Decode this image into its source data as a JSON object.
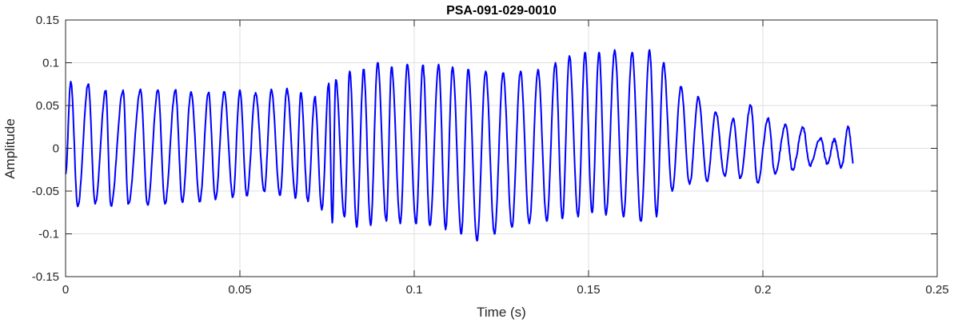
{
  "chart_data": {
    "type": "line",
    "title": "PSA-091-029-0010",
    "xlabel": "Time (s)",
    "ylabel": "Amplitude",
    "xlim": [
      0,
      0.25
    ],
    "ylim": [
      -0.15,
      0.15
    ],
    "x_ticks": [
      0,
      0.05,
      0.1,
      0.15,
      0.2,
      0.25
    ],
    "x_tick_labels": [
      "0",
      "0.05",
      "0.1",
      "0.15",
      "0.2",
      "0.25"
    ],
    "y_ticks": [
      -0.15,
      -0.1,
      -0.05,
      0,
      0.05,
      0.1,
      0.15
    ],
    "y_tick_labels": [
      "-0.15",
      "-0.1",
      "-0.05",
      "0",
      "0.05",
      "0.1",
      "0.15"
    ],
    "grid": true,
    "line_color": "#0000ff",
    "series": [
      {
        "peaks": [
          {
            "t": 0.0015,
            "v": 0.078
          },
          {
            "t": 0.0065,
            "v": 0.075
          },
          {
            "t": 0.0115,
            "v": 0.067
          },
          {
            "t": 0.0165,
            "v": 0.068
          },
          {
            "t": 0.0215,
            "v": 0.069
          },
          {
            "t": 0.0265,
            "v": 0.068
          },
          {
            "t": 0.0315,
            "v": 0.068
          },
          {
            "t": 0.036,
            "v": 0.066
          },
          {
            "t": 0.041,
            "v": 0.065
          },
          {
            "t": 0.0455,
            "v": 0.066
          },
          {
            "t": 0.05,
            "v": 0.068
          },
          {
            "t": 0.0545,
            "v": 0.065
          },
          {
            "t": 0.059,
            "v": 0.069
          },
          {
            "t": 0.0635,
            "v": 0.07
          },
          {
            "t": 0.0675,
            "v": 0.065
          },
          {
            "t": 0.0715,
            "v": 0.06
          },
          {
            "t": 0.0755,
            "v": 0.076
          },
          {
            "t": 0.0775,
            "v": 0.08
          },
          {
            "t": 0.0815,
            "v": 0.09
          },
          {
            "t": 0.0855,
            "v": 0.092
          },
          {
            "t": 0.0895,
            "v": 0.1
          },
          {
            "t": 0.0935,
            "v": 0.095
          },
          {
            "t": 0.098,
            "v": 0.098
          },
          {
            "t": 0.1025,
            "v": 0.097
          },
          {
            "t": 0.107,
            "v": 0.098
          },
          {
            "t": 0.111,
            "v": 0.095
          },
          {
            "t": 0.1155,
            "v": 0.092
          },
          {
            "t": 0.1205,
            "v": 0.09
          },
          {
            "t": 0.1255,
            "v": 0.088
          },
          {
            "t": 0.1305,
            "v": 0.09
          },
          {
            "t": 0.1355,
            "v": 0.092
          },
          {
            "t": 0.1405,
            "v": 0.1
          },
          {
            "t": 0.1445,
            "v": 0.108
          },
          {
            "t": 0.149,
            "v": 0.112
          },
          {
            "t": 0.153,
            "v": 0.112
          },
          {
            "t": 0.1575,
            "v": 0.115
          },
          {
            "t": 0.1625,
            "v": 0.112
          },
          {
            "t": 0.1675,
            "v": 0.115
          },
          {
            "t": 0.1715,
            "v": 0.1
          },
          {
            "t": 0.1765,
            "v": 0.072
          },
          {
            "t": 0.1815,
            "v": 0.06
          },
          {
            "t": 0.1865,
            "v": 0.042
          },
          {
            "t": 0.1915,
            "v": 0.035
          },
          {
            "t": 0.1965,
            "v": 0.05
          },
          {
            "t": 0.2015,
            "v": 0.035
          },
          {
            "t": 0.2065,
            "v": 0.028
          },
          {
            "t": 0.2115,
            "v": 0.024
          },
          {
            "t": 0.2165,
            "v": 0.012
          },
          {
            "t": 0.2205,
            "v": 0.01
          },
          {
            "t": 0.2245,
            "v": 0.025
          }
        ],
        "troughs": [
          {
            "t": 0.0035,
            "v": -0.068
          },
          {
            "t": 0.0085,
            "v": -0.065
          },
          {
            "t": 0.013,
            "v": -0.067
          },
          {
            "t": 0.018,
            "v": -0.065
          },
          {
            "t": 0.0235,
            "v": -0.066
          },
          {
            "t": 0.0285,
            "v": -0.065
          },
          {
            "t": 0.0335,
            "v": -0.063
          },
          {
            "t": 0.0385,
            "v": -0.062
          },
          {
            "t": 0.043,
            "v": -0.06
          },
          {
            "t": 0.048,
            "v": -0.057
          },
          {
            "t": 0.052,
            "v": -0.055
          },
          {
            "t": 0.057,
            "v": -0.05
          },
          {
            "t": 0.0615,
            "v": -0.055
          },
          {
            "t": 0.066,
            "v": -0.058
          },
          {
            "t": 0.0695,
            "v": -0.062
          },
          {
            "t": 0.0735,
            "v": -0.072
          },
          {
            "t": 0.0765,
            "v": -0.087
          },
          {
            "t": 0.08,
            "v": -0.08
          },
          {
            "t": 0.0835,
            "v": -0.092
          },
          {
            "t": 0.0875,
            "v": -0.09
          },
          {
            "t": 0.092,
            "v": -0.085
          },
          {
            "t": 0.096,
            "v": -0.088
          },
          {
            "t": 0.1005,
            "v": -0.088
          },
          {
            "t": 0.1045,
            "v": -0.09
          },
          {
            "t": 0.109,
            "v": -0.095
          },
          {
            "t": 0.1135,
            "v": -0.1
          },
          {
            "t": 0.118,
            "v": -0.108
          },
          {
            "t": 0.123,
            "v": -0.1
          },
          {
            "t": 0.128,
            "v": -0.092
          },
          {
            "t": 0.133,
            "v": -0.088
          },
          {
            "t": 0.138,
            "v": -0.085
          },
          {
            "t": 0.1425,
            "v": -0.082
          },
          {
            "t": 0.147,
            "v": -0.08
          },
          {
            "t": 0.151,
            "v": -0.075
          },
          {
            "t": 0.155,
            "v": -0.078
          },
          {
            "t": 0.16,
            "v": -0.08
          },
          {
            "t": 0.165,
            "v": -0.085
          },
          {
            "t": 0.1695,
            "v": -0.08
          },
          {
            "t": 0.174,
            "v": -0.05
          },
          {
            "t": 0.179,
            "v": -0.042
          },
          {
            "t": 0.184,
            "v": -0.038
          },
          {
            "t": 0.189,
            "v": -0.032
          },
          {
            "t": 0.1935,
            "v": -0.035
          },
          {
            "t": 0.1985,
            "v": -0.04
          },
          {
            "t": 0.2035,
            "v": -0.03
          },
          {
            "t": 0.2085,
            "v": -0.025
          },
          {
            "t": 0.2135,
            "v": -0.02
          },
          {
            "t": 0.2185,
            "v": -0.018
          },
          {
            "t": 0.2225,
            "v": -0.022
          }
        ],
        "start": {
          "t": 0,
          "v": -0.03
        },
        "end": {
          "t": 0.226,
          "v": -0.017
        }
      }
    ]
  }
}
